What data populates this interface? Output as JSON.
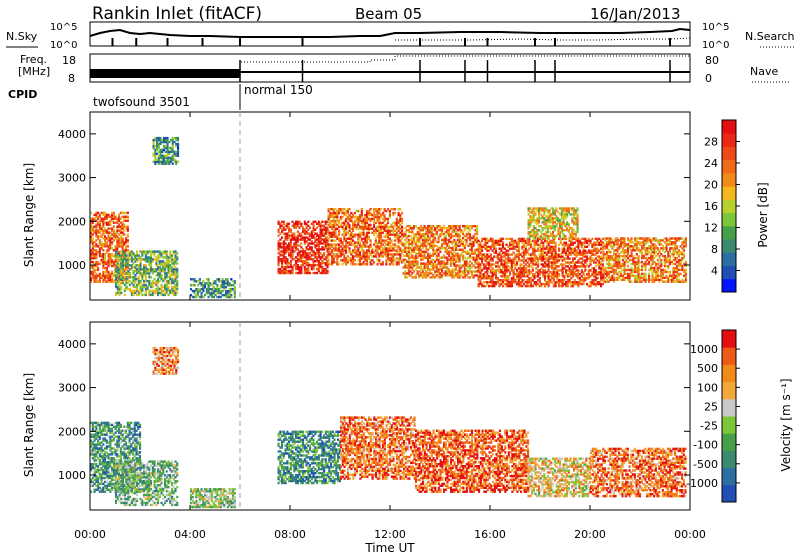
{
  "header": {
    "station": "Rankin Inlet (fitACF)",
    "beam": "Beam 05",
    "date": "16/Jan/2013"
  },
  "noise_panel": {
    "left_label": "N.Sky",
    "right_label": "N.Search",
    "ticks_left": [
      "10^5",
      "10^0"
    ],
    "ticks_right": [
      "10^5",
      "10^0"
    ]
  },
  "freq_panel": {
    "left_label_1": "Freq.",
    "left_label_2": "[MHz]",
    "ticks_left": [
      "18",
      "8"
    ],
    "right_label": "Nave",
    "ticks_right": [
      "80",
      "0"
    ]
  },
  "cpid": {
    "label": "CPID",
    "modes": [
      {
        "name": "twofsound 3501",
        "start_hour": 0,
        "end_hour": 6
      },
      {
        "name": "normal 150",
        "start_hour": 6,
        "end_hour": 24
      }
    ]
  },
  "chart_data": [
    {
      "type": "heatmap",
      "title": "",
      "xlabel": "",
      "ylabel": "Slant Range [km]",
      "xlim": [
        0,
        24
      ],
      "ylim": [
        200,
        4500
      ],
      "yticks": [
        "1000",
        "2000",
        "3000",
        "4000"
      ],
      "colorbar": {
        "label": "Power [dB]",
        "ticks": [
          "4",
          "8",
          "12",
          "16",
          "20",
          "24",
          "28"
        ],
        "colors": [
          "#0014ff",
          "#1f4fb4",
          "#2d6ea3",
          "#3a8a6e",
          "#46a04a",
          "#7dc63a",
          "#b8d02e",
          "#f2b81d",
          "#f28a19",
          "#f06a18",
          "#ee4a17",
          "#ea2a14",
          "#e40f10"
        ]
      },
      "echo_regions": [
        {
          "t0": 0.0,
          "t1": 1.5,
          "r0": 600,
          "r1": 2200,
          "level": 0.75
        },
        {
          "t0": 1.0,
          "t1": 3.5,
          "r0": 300,
          "r1": 1300,
          "level": 0.4
        },
        {
          "t0": 2.5,
          "t1": 3.5,
          "r0": 3300,
          "r1": 3900,
          "level": 0.3
        },
        {
          "t0": 4.0,
          "t1": 5.8,
          "r0": 250,
          "r1": 700,
          "level": 0.3
        },
        {
          "t0": 7.5,
          "t1": 9.5,
          "r0": 800,
          "r1": 2000,
          "level": 0.9
        },
        {
          "t0": 9.5,
          "t1": 12.5,
          "r0": 1000,
          "r1": 2300,
          "level": 0.75
        },
        {
          "t0": 12.5,
          "t1": 15.5,
          "r0": 700,
          "r1": 1900,
          "level": 0.7
        },
        {
          "t0": 15.5,
          "t1": 20.5,
          "r0": 500,
          "r1": 1600,
          "level": 0.8
        },
        {
          "t0": 17.5,
          "t1": 19.5,
          "r0": 1600,
          "r1": 2300,
          "level": 0.55
        },
        {
          "t0": 20.5,
          "t1": 23.8,
          "r0": 600,
          "r1": 1600,
          "level": 0.7
        }
      ]
    },
    {
      "type": "heatmap",
      "title": "",
      "xlabel": "Time UT",
      "ylabel": "Slant Range [km]",
      "xlim": [
        0,
        24
      ],
      "ylim": [
        200,
        4500
      ],
      "xticks": [
        "00:00",
        "04:00",
        "08:00",
        "12:00",
        "16:00",
        "20:00",
        "00:00"
      ],
      "yticks": [
        "1000",
        "2000",
        "3000",
        "4000"
      ],
      "colorbar": {
        "label": "Velocity [m s⁻¹]",
        "ticks": [
          "1000",
          "500",
          "100",
          "25",
          "-25",
          "-100",
          "-500",
          "-1000"
        ],
        "colors": [
          "#1f4fb4",
          "#2d6ea3",
          "#3a8a6e",
          "#46a04a",
          "#7dc63a",
          "#c8c8c8",
          "#f2a83a",
          "#f28a19",
          "#ee5a17",
          "#e40f10"
        ]
      },
      "echo_regions": [
        {
          "t0": 0.0,
          "t1": 2.0,
          "r0": 600,
          "r1": 2200,
          "level": 0.3
        },
        {
          "t0": 1.0,
          "t1": 3.5,
          "r0": 300,
          "r1": 1300,
          "level": 0.4
        },
        {
          "t0": 2.5,
          "t1": 3.5,
          "r0": 3300,
          "r1": 3900,
          "level": 0.75
        },
        {
          "t0": 4.0,
          "t1": 5.8,
          "r0": 250,
          "r1": 700,
          "level": 0.45
        },
        {
          "t0": 7.5,
          "t1": 10.0,
          "r0": 800,
          "r1": 2000,
          "level": 0.25
        },
        {
          "t0": 10.0,
          "t1": 13.0,
          "r0": 900,
          "r1": 2300,
          "level": 0.8
        },
        {
          "t0": 13.0,
          "t1": 17.5,
          "r0": 600,
          "r1": 2000,
          "level": 0.85
        },
        {
          "t0": 17.5,
          "t1": 20.0,
          "r0": 500,
          "r1": 1400,
          "level": 0.6
        },
        {
          "t0": 20.0,
          "t1": 23.8,
          "r0": 500,
          "r1": 1600,
          "level": 0.8
        }
      ]
    }
  ]
}
